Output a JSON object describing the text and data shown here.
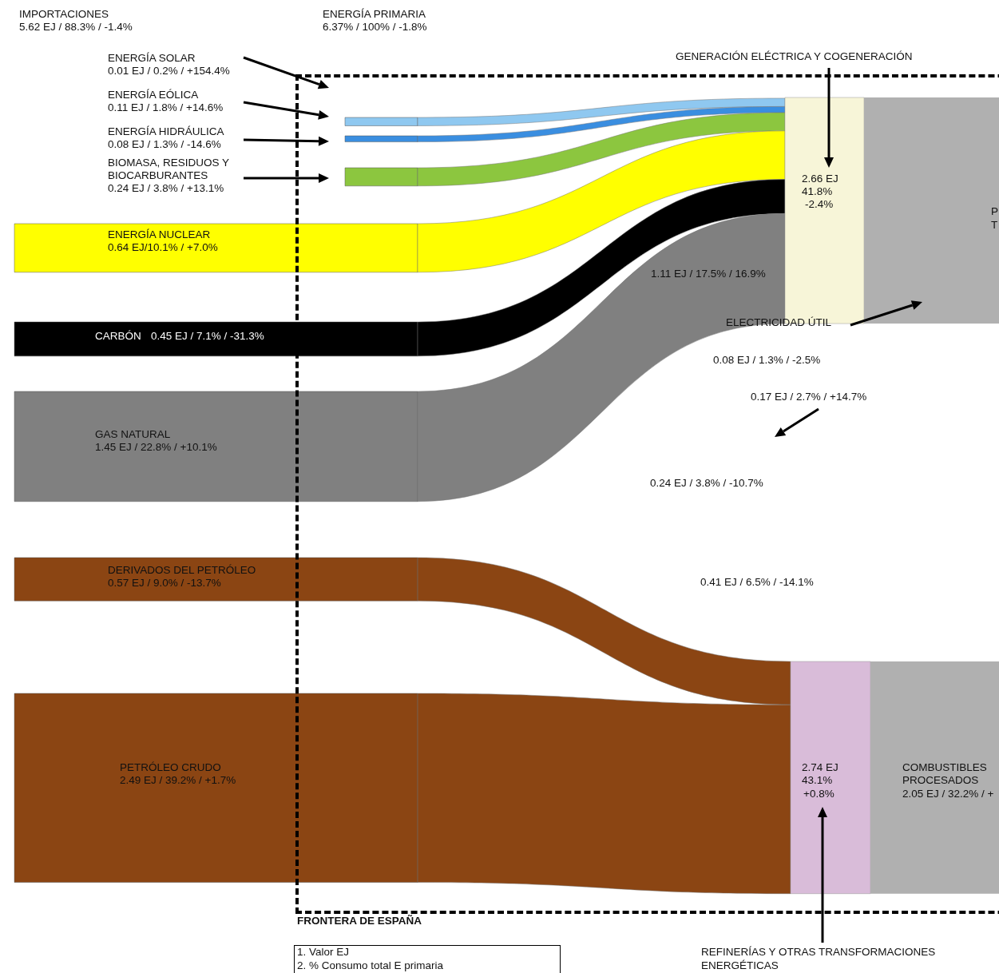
{
  "chart_data": {
    "type": "other",
    "categories": [
      "ENERGÍA SOLAR",
      "ENERGÍA EÓLICA",
      "ENERGÍA HIDRÁULICA",
      "BIOMASA, RESIDUOS Y BIOCARBURANTES",
      "ENERGÍA NUCLEAR",
      "CARBÓN",
      "GAS NATURAL",
      "DERIVADOS DEL PETRÓLEO",
      "PETRÓLEO CRUDO"
    ],
    "values": [
      0.01,
      0.11,
      0.08,
      0.24,
      0.64,
      0.45,
      1.45,
      0.57,
      2.49
    ],
    "value_labels": [
      "0.01 EJ / 0.2% / +154.4%",
      "0.11 EJ / 1.8% / +14.6%",
      "0.08 EJ / 1.3% / -14.6%",
      "0.24 EJ / 3.8% / +13.1%",
      "0.64 EJ/10.1% / +7.0%",
      "0.45 EJ / 7.1% / -31.3%",
      "1.45 EJ / 22.8% / +10.1%",
      "0.57 EJ / 9.0% / -13.7%",
      "2.49 EJ / 39.2% / +1.7%"
    ],
    "colors": [
      "#ffffff",
      "#8fc8f0",
      "#3a8ee0",
      "#8cc63f",
      "#ffff00",
      "#000000",
      "#808080",
      "#8b4513",
      "#8b4513"
    ],
    "annotations": [
      "IMPORTACIONES",
      "5.62 EJ / 88.3% / -1.4%",
      "ENERGÍA PRIMARIA",
      "6.37% / 100% / -1.8%",
      "GENERACIÓN ELÉCTRICA Y COGENERACIÓN",
      "2.66 EJ",
      "41.8%",
      "-2.4%",
      "1.11 EJ / 17.5% / 16.9%",
      "ELECTRICIDAD ÚTIL",
      "0.08 EJ / 1.3% / -2.5%",
      "0.17 EJ / 2.7% / +14.7%",
      "0.24 EJ / 3.8% / -10.7%",
      "0.41 EJ / 6.5% / -14.1%",
      "2.74 EJ",
      "43.1%",
      "+0.8%",
      "COMBUSTIBLES",
      "PROCESADOS",
      "2.05 EJ / 32.2% / +",
      "FRONTERA DE ESPAÑA",
      "1. Valor EJ",
      "2. % Consumo total E primaria",
      "REFINERÍAS Y OTRAS TRANSFORMACIONES",
      "ENERGÉTICAS",
      "P",
      "T"
    ]
  }
}
